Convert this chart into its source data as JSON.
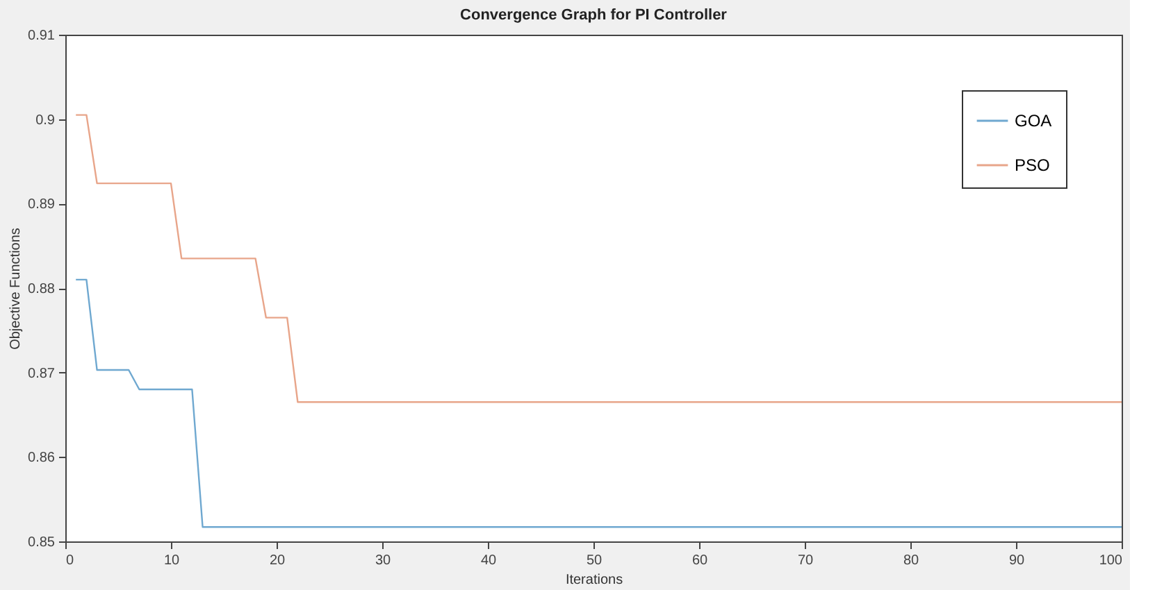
{
  "chart_data": {
    "type": "line",
    "title": "Convergence Graph for PI Controller",
    "xlabel": "Iterations",
    "ylabel": "Objective Functions",
    "xlim": [
      0,
      100
    ],
    "xticks": [
      0,
      10,
      20,
      30,
      40,
      50,
      60,
      70,
      80,
      90,
      100
    ],
    "ylim": [
      0.85,
      0.91
    ],
    "yticks": [
      0.85,
      0.86,
      0.87,
      0.88,
      0.89,
      0.9,
      0.91
    ],
    "grid": false,
    "legend": "top right",
    "marker": "none",
    "line_style": "solid",
    "series": [
      {
        "name": "GOA",
        "color": "#6fa8d0",
        "x": [
          1,
          2,
          3,
          6,
          7,
          12,
          13,
          100
        ],
        "values": [
          0.881,
          0.881,
          0.8703,
          0.8703,
          0.868,
          0.868,
          0.8517,
          0.8517
        ]
      },
      {
        "name": "PSO",
        "color": "#e8a58a",
        "x": [
          1,
          2,
          3,
          10,
          11,
          18,
          19,
          21,
          22,
          100
        ],
        "values": [
          0.9005,
          0.9005,
          0.8924,
          0.8924,
          0.8835,
          0.8835,
          0.8765,
          0.8765,
          0.8665,
          0.8665
        ]
      }
    ]
  }
}
